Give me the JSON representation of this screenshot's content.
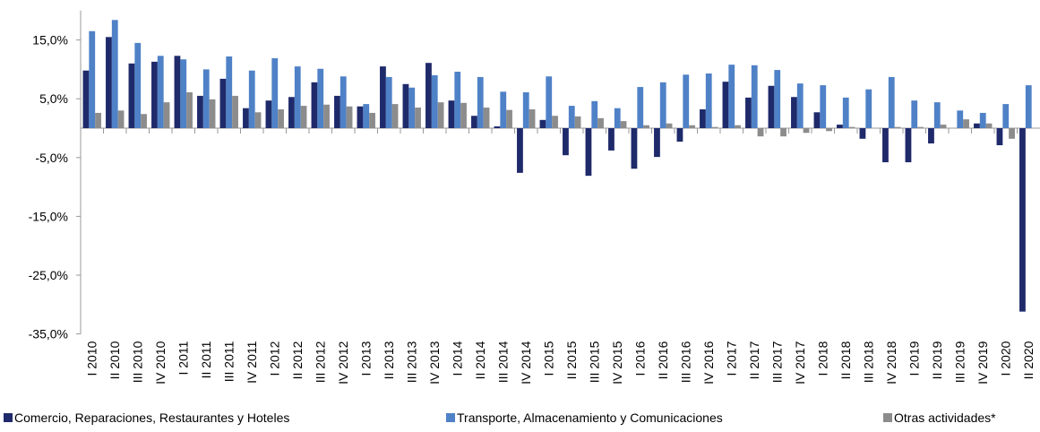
{
  "chart_data": {
    "type": "bar",
    "categories": [
      "I 2010",
      "II 2010",
      "III 2010",
      "IV 2010",
      "I 2011",
      "II 2011",
      "III 2011",
      "IV 2011",
      "I 2012",
      "II 2012",
      "III 2012",
      "IV 2012",
      "I 2013",
      "II 2013",
      "III 2013",
      "IV 2013",
      "I 2014",
      "II 2014",
      "III 2014",
      "IV 2014",
      "I 2015",
      "II 2015",
      "III 2015",
      "IV 2015",
      "I 2016",
      "II 2016",
      "III 2016",
      "IV 2016",
      "I 2017",
      "II 2017",
      "III 2017",
      "IV 2017",
      "I 2018",
      "II 2018",
      "III 2018",
      "IV 2018",
      "I 2019",
      "II 2019",
      "III 2019",
      "IV 2019",
      "I 2020",
      "II 2020"
    ],
    "series": [
      {
        "name": "Comercio, Reparaciones, Restaurantes y Hoteles",
        "color": "#1f2a6b",
        "values": [
          9.8,
          15.5,
          11.0,
          11.3,
          12.3,
          5.5,
          8.4,
          3.4,
          4.7,
          5.3,
          7.8,
          5.5,
          3.7,
          10.5,
          7.5,
          11.1,
          4.7,
          2.1,
          0.3,
          -7.6,
          1.4,
          -4.6,
          -8.1,
          -3.8,
          -6.9,
          -4.9,
          -2.3,
          3.2,
          7.9,
          5.2,
          7.2,
          5.3,
          2.7,
          0.6,
          -1.8,
          -5.8,
          -5.8,
          -2.6,
          0,
          0.8,
          -2.9,
          -31.2
        ]
      },
      {
        "name": "Transporte, Almacenamiento y Comunicaciones",
        "color": "#4f81c7",
        "values": [
          16.5,
          18.4,
          14.5,
          12.3,
          11.7,
          10.0,
          12.2,
          9.8,
          11.9,
          10.5,
          10.1,
          8.8,
          4.1,
          8.7,
          6.9,
          9.0,
          9.6,
          8.7,
          6.2,
          6.1,
          8.8,
          3.8,
          4.6,
          3.4,
          7.0,
          7.8,
          9.1,
          9.3,
          10.8,
          10.7,
          9.9,
          7.6,
          7.3,
          5.2,
          6.6,
          8.7,
          4.7,
          4.4,
          3.0,
          2.6,
          4.1,
          7.3
        ]
      },
      {
        "name": "Otras actividades*",
        "color": "#8c8c8c",
        "values": [
          2.6,
          3.0,
          2.4,
          4.4,
          6.1,
          4.9,
          5.5,
          2.7,
          3.2,
          3.8,
          4.0,
          3.7,
          2.6,
          4.1,
          3.5,
          4.4,
          4.3,
          3.5,
          3.1,
          3.2,
          2.1,
          2.0,
          1.7,
          1.2,
          0.5,
          0.8,
          0.5,
          0.2,
          0.5,
          -1.4,
          -1.4,
          -0.8,
          -0.5,
          0.2,
          0,
          0.2,
          0.2,
          0.6,
          1.5,
          0.8,
          -1.8,
          null
        ]
      }
    ],
    "ylim": [
      -35,
      20
    ],
    "yticks": [
      {
        "value": 15,
        "label": "15,0%"
      },
      {
        "value": 5,
        "label": "5,0%"
      },
      {
        "value": -5,
        "label": "-5,0%"
      },
      {
        "value": -15,
        "label": "-15,0%"
      },
      {
        "value": -25,
        "label": "-25,0%"
      },
      {
        "value": -35,
        "label": "-35,0%"
      }
    ],
    "grid": false
  }
}
